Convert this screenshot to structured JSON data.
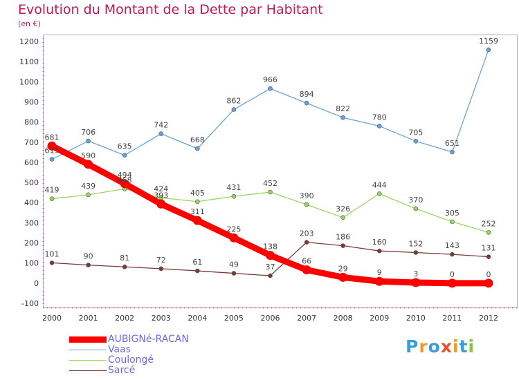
{
  "chart_data": {
    "type": "line",
    "title": "Evolution du Montant de la Dette par Habitant",
    "subtitle": "(en €)",
    "x": [
      "2000",
      "2001",
      "2002",
      "2003",
      "2004",
      "2005",
      "2006",
      "2007",
      "2008",
      "2009",
      "2010",
      "2011",
      "2012"
    ],
    "yticks": [
      -100,
      0,
      100,
      200,
      300,
      400,
      500,
      600,
      700,
      800,
      900,
      1000,
      1100,
      1200
    ],
    "ylim": [
      -100,
      1200
    ],
    "series": [
      {
        "name": "AUBIGNé-RACAN",
        "color": "#ff0000",
        "values": [
          681,
          590,
          494,
          393,
          311,
          225,
          138,
          66,
          29,
          9,
          3,
          0,
          0
        ]
      },
      {
        "name": "Vaas",
        "color": "#6aa3d6",
        "values": [
          615,
          706,
          635,
          742,
          668,
          862,
          966,
          894,
          822,
          780,
          705,
          651,
          1159
        ]
      },
      {
        "name": "Coulongé",
        "color": "#9ad65e",
        "values": [
          419,
          439,
          468,
          424,
          405,
          431,
          452,
          390,
          326,
          444,
          370,
          305,
          252
        ]
      },
      {
        "name": "Sarcé",
        "color": "#7a3a3a",
        "values": [
          101,
          90,
          81,
          72,
          61,
          49,
          37,
          203,
          186,
          160,
          152,
          143,
          131
        ]
      }
    ],
    "legend": "bottom-left",
    "grid": false
  },
  "logo": {
    "text": "Proxiti",
    "colors": [
      "#3d9bd8",
      "#f29b1d",
      "#3d9bd8",
      "#e65325",
      "#f29b1d",
      "#3d9bd8",
      "#8cc63f"
    ]
  }
}
